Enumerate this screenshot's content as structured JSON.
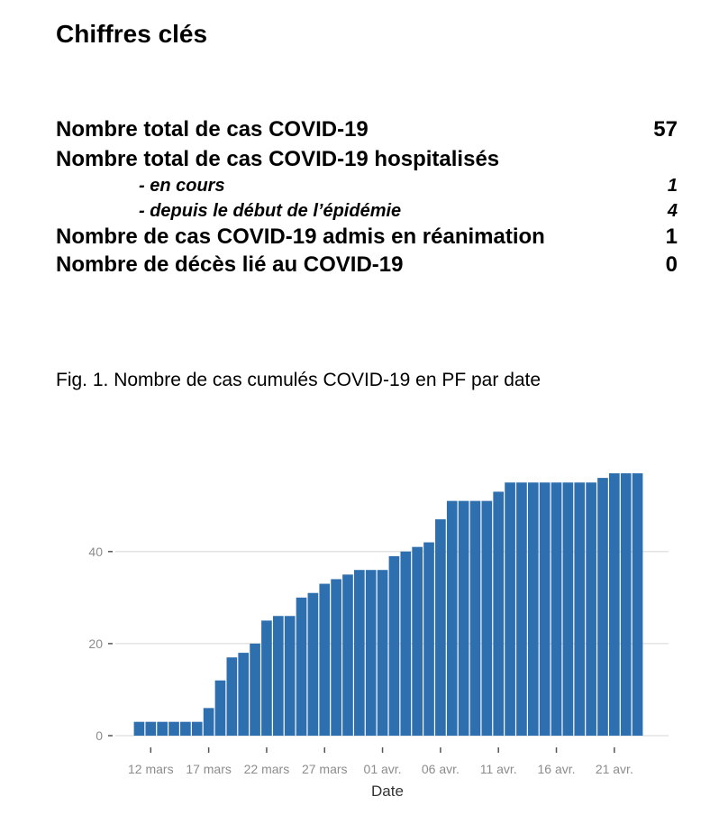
{
  "heading": "Chiffres clés",
  "key_figures": {
    "total_cases": {
      "label": "Nombre total de cas COVID-19",
      "value": "57"
    },
    "hospitalized": {
      "label": "Nombre total de cas COVID-19 hospitalisés"
    },
    "current": {
      "label": "- en cours",
      "value": "1"
    },
    "since_start": {
      "label": "- depuis le début de l’épidémie",
      "value": "4"
    },
    "icu": {
      "label": "Nombre de cas COVID-19 admis en réanimation",
      "value": "1"
    },
    "deaths": {
      "label": "Nombre de décès lié au COVID-19",
      "value": "0"
    }
  },
  "caption": "Fig. 1. Nombre de cas cumulés COVID-19 en PF par date",
  "chart_data": {
    "type": "bar",
    "title": "",
    "xlabel": "Date",
    "ylabel": "",
    "color": "#2e6faf",
    "grid": true,
    "ylim": [
      0,
      57
    ],
    "yticks": [
      0,
      20,
      40
    ],
    "categories": [
      "11 mars",
      "12 mars",
      "13 mars",
      "14 mars",
      "15 mars",
      "16 mars",
      "17 mars",
      "18 mars",
      "19 mars",
      "20 mars",
      "21 mars",
      "22 mars",
      "23 mars",
      "24 mars",
      "25 mars",
      "26 mars",
      "27 mars",
      "28 mars",
      "29 mars",
      "30 mars",
      "31 mars",
      "01 avr.",
      "02 avr.",
      "03 avr.",
      "04 avr.",
      "05 avr.",
      "06 avr.",
      "07 avr.",
      "08 avr.",
      "09 avr.",
      "10 avr.",
      "11 avr.",
      "12 avr.",
      "13 avr.",
      "14 avr.",
      "15 avr.",
      "16 avr.",
      "17 avr.",
      "18 avr.",
      "19 avr.",
      "20 avr.",
      "21 avr.",
      "22 avr.",
      "23 avr."
    ],
    "values": [
      3,
      3,
      3,
      3,
      3,
      3,
      6,
      12,
      17,
      18,
      20,
      25,
      26,
      26,
      30,
      31,
      33,
      34,
      35,
      36,
      36,
      36,
      39,
      40,
      41,
      42,
      47,
      51,
      51,
      51,
      51,
      53,
      55,
      55,
      55,
      55,
      55,
      55,
      55,
      55,
      56,
      57,
      57,
      57
    ],
    "xtick_labels": [
      "12 mars",
      "17 mars",
      "22 mars",
      "27 mars",
      "01 avr.",
      "06 avr.",
      "11 avr.",
      "16 avr.",
      "21 avr."
    ]
  }
}
